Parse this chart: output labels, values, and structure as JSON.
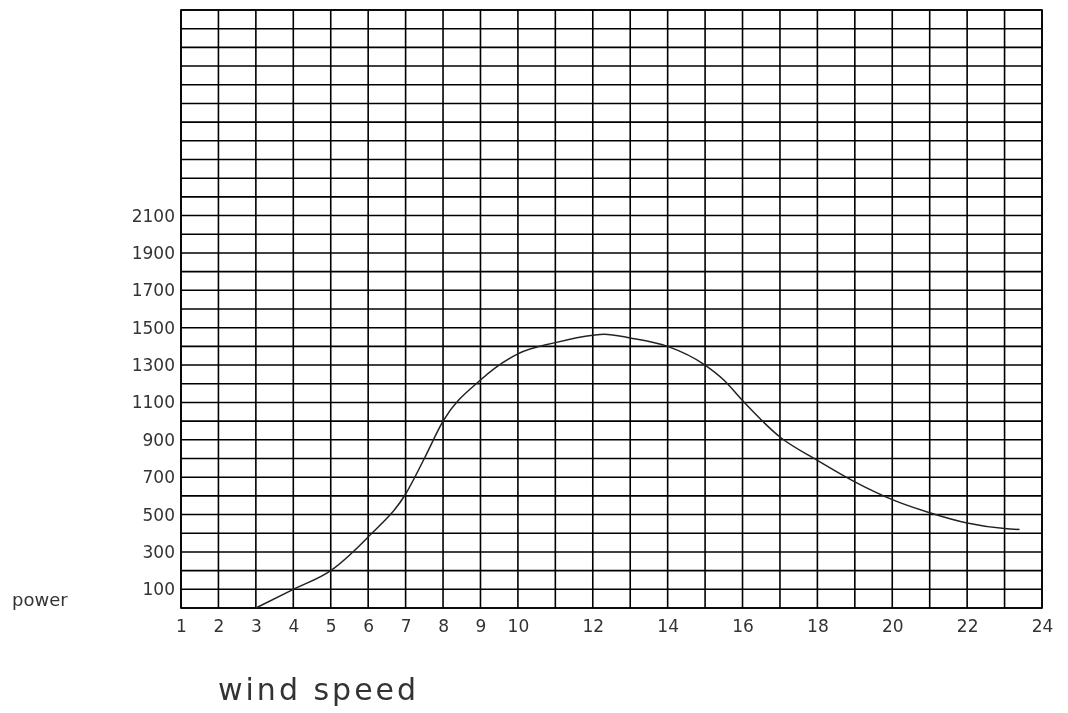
{
  "chart_data": {
    "type": "line",
    "xlabel": "wind speed",
    "ylabel": "power",
    "xlim": [
      1,
      24
    ],
    "ylim": [
      0,
      3200
    ],
    "xticks": [
      1,
      2,
      3,
      4,
      5,
      6,
      7,
      8,
      9,
      10,
      {
        "value": 11,
        "label": null
      },
      12,
      {
        "value": 13,
        "label": null
      },
      14,
      {
        "value": 15,
        "label": null
      },
      16,
      {
        "value": 17,
        "label": null
      },
      18,
      {
        "value": 19,
        "label": null
      },
      20,
      {
        "value": 21,
        "label": null
      },
      22,
      {
        "value": 23,
        "label": null
      },
      24
    ],
    "yticks": [
      {
        "value": 0,
        "label": null
      },
      100,
      {
        "value": 200,
        "label": null
      },
      300,
      {
        "value": 400,
        "label": null
      },
      500,
      {
        "value": 600,
        "label": null
      },
      700,
      {
        "value": 800,
        "label": null
      },
      900,
      {
        "value": 1000,
        "label": null
      },
      1100,
      {
        "value": 1200,
        "label": null
      },
      1300,
      {
        "value": 1400,
        "label": null
      },
      1500,
      {
        "value": 1600,
        "label": null
      },
      1700,
      {
        "value": 1800,
        "label": null
      },
      1900,
      {
        "value": 2000,
        "label": null
      },
      2100,
      {
        "value": 2200,
        "label": null
      },
      {
        "value": 2300,
        "label": null
      },
      {
        "value": 2400,
        "label": null
      },
      {
        "value": 2500,
        "label": null
      },
      {
        "value": 2600,
        "label": null
      },
      {
        "value": 2700,
        "label": null
      },
      {
        "value": 2800,
        "label": null
      },
      {
        "value": 2900,
        "label": null
      },
      {
        "value": 3000,
        "label": null
      },
      {
        "value": 3100,
        "label": null
      },
      {
        "value": 3200,
        "label": null
      }
    ],
    "grid": true,
    "marker": "none",
    "line_style": "solid",
    "series": [
      {
        "color": "#222222",
        "x": [
          3,
          4,
          5,
          6,
          7,
          7.5,
          8,
          9,
          10,
          11,
          12,
          12.3,
          13,
          14,
          15,
          15.5,
          16,
          17,
          18,
          19,
          20,
          21,
          22,
          23,
          23.4
        ],
        "values": [
          0,
          100,
          200,
          380,
          610,
          800,
          1000,
          1220,
          1360,
          1420,
          1460,
          1465,
          1445,
          1400,
          1300,
          1220,
          1110,
          915,
          790,
          675,
          580,
          510,
          455,
          425,
          420
        ]
      }
    ]
  }
}
